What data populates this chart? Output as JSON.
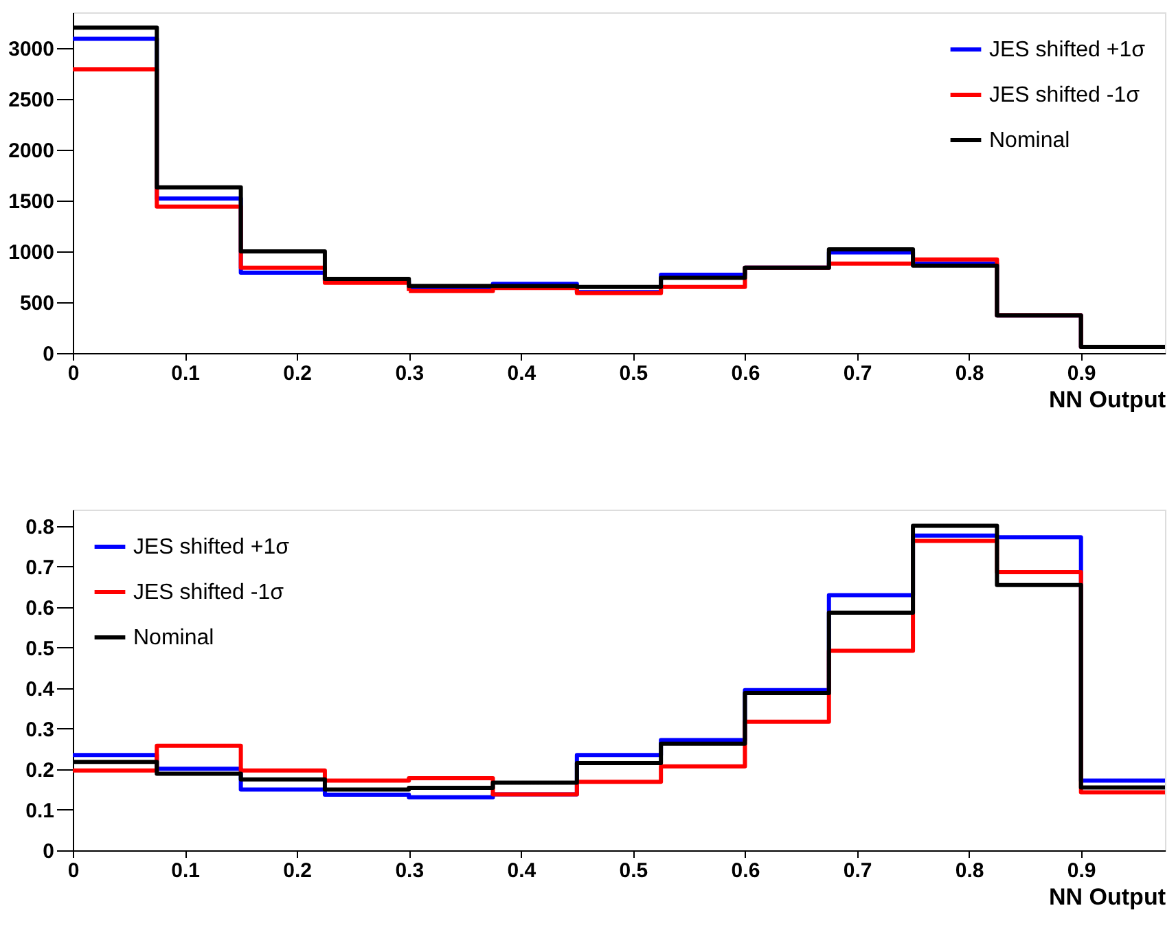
{
  "chart_data": [
    {
      "type": "histogram",
      "xlabel": "NN Output",
      "bins": [
        0,
        0.075,
        0.15,
        0.225,
        0.3,
        0.375,
        0.45,
        0.525,
        0.6,
        0.675,
        0.75,
        0.825,
        0.9,
        0.975
      ],
      "xlim": [
        0,
        0.975
      ],
      "xticks": [
        0,
        0.1,
        0.2,
        0.3,
        0.4,
        0.5,
        0.6,
        0.7,
        0.8,
        0.9
      ],
      "ylim": [
        0,
        3350
      ],
      "yticks": [
        0,
        500,
        1000,
        1500,
        2000,
        2500,
        3000
      ],
      "grid": false,
      "legend": "top right",
      "line_style": "solid",
      "series": [
        {
          "name": "JES shifted +1σ",
          "color": "#0000ff",
          "values": [
            3090,
            1520,
            790,
            710,
            640,
            680,
            600,
            770,
            840,
            990,
            880,
            370,
            60
          ]
        },
        {
          "name": "JES shifted -1σ",
          "color": "#ff0000",
          "values": [
            2790,
            1440,
            840,
            690,
            610,
            640,
            590,
            650,
            840,
            880,
            920,
            370,
            60
          ]
        },
        {
          "name": "Nominal",
          "color": "#000000",
          "values": [
            3200,
            1630,
            1000,
            730,
            660,
            660,
            650,
            740,
            840,
            1020,
            860,
            370,
            60
          ]
        }
      ]
    },
    {
      "type": "histogram",
      "xlabel": "NN Output",
      "bins": [
        0,
        0.075,
        0.15,
        0.225,
        0.3,
        0.375,
        0.45,
        0.525,
        0.6,
        0.675,
        0.75,
        0.825,
        0.9,
        0.975
      ],
      "xlim": [
        0,
        0.975
      ],
      "xticks": [
        0,
        0.1,
        0.2,
        0.3,
        0.4,
        0.5,
        0.6,
        0.7,
        0.8,
        0.9
      ],
      "ylim": [
        0,
        0.84
      ],
      "yticks": [
        0,
        0.1,
        0.2,
        0.3,
        0.4,
        0.5,
        0.6,
        0.7,
        0.8
      ],
      "grid": false,
      "legend": "top left",
      "line_style": "solid",
      "series": [
        {
          "name": "JES shifted +1σ",
          "color": "#0000ff",
          "values": [
            0.235,
            0.201,
            0.15,
            0.137,
            0.131,
            0.138,
            0.235,
            0.272,
            0.395,
            0.629,
            0.776,
            0.772,
            0.172
          ]
        },
        {
          "name": "JES shifted -1σ",
          "color": "#ff0000",
          "values": [
            0.197,
            0.258,
            0.197,
            0.172,
            0.178,
            0.138,
            0.169,
            0.207,
            0.317,
            0.492,
            0.763,
            0.686,
            0.143
          ]
        },
        {
          "name": "Nominal",
          "color": "#000000",
          "values": [
            0.218,
            0.189,
            0.175,
            0.15,
            0.154,
            0.167,
            0.215,
            0.263,
            0.388,
            0.586,
            0.8,
            0.654,
            0.155
          ]
        }
      ]
    }
  ]
}
